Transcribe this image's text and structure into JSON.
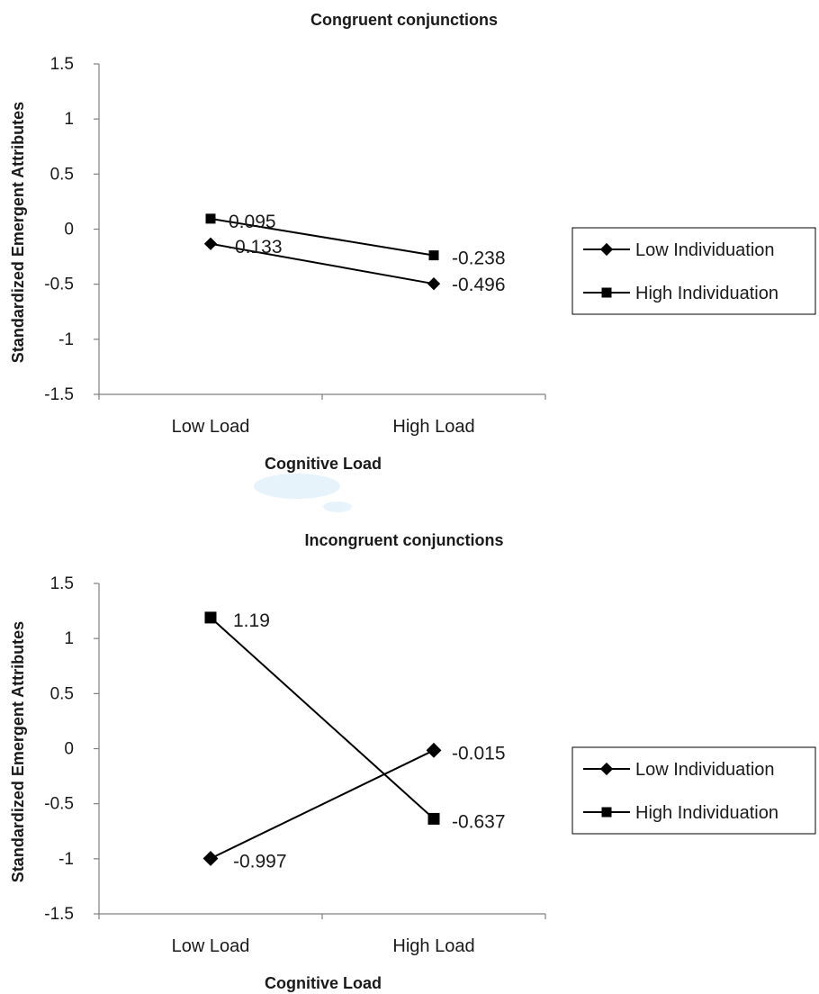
{
  "chart_data": [
    {
      "type": "line",
      "title": "Congruent conjunctions",
      "xlabel": "Cognitive Load",
      "ylabel": "Standardized Emergent Attributes",
      "categories": [
        "Low Load",
        "High Load"
      ],
      "ylim": [
        -1.5,
        1.5
      ],
      "yticks": [
        "1.5",
        "1",
        "0.5",
        "0",
        "-0.5",
        "-1",
        "-1.5"
      ],
      "grid": false,
      "legend_position": "right",
      "series": [
        {
          "name": "Low Individuation",
          "marker": "diamond",
          "values": [
            -0.133,
            -0.496
          ],
          "labels": [
            "-0.133",
            "-0.496"
          ]
        },
        {
          "name": "High Individuation",
          "marker": "square",
          "values": [
            0.095,
            -0.238
          ],
          "labels": [
            "0.095",
            "-0.238"
          ]
        }
      ]
    },
    {
      "type": "line",
      "title": "Incongruent conjunctions",
      "xlabel": "Cognitive Load",
      "ylabel": "Standardized Emergent Attributes",
      "categories": [
        "Low Load",
        "High Load"
      ],
      "ylim": [
        -1.5,
        1.5
      ],
      "yticks": [
        "1.5",
        "1",
        "0.5",
        "0",
        "-0.5",
        "-1",
        "-1.5"
      ],
      "grid": false,
      "legend_position": "right",
      "series": [
        {
          "name": "Low Individuation",
          "marker": "diamond",
          "values": [
            -0.997,
            -0.015
          ],
          "labels": [
            "-0.997",
            "-0.015"
          ]
        },
        {
          "name": "High Individuation",
          "marker": "square",
          "values": [
            1.19,
            -0.637
          ],
          "labels": [
            "1.19",
            "-0.637"
          ]
        }
      ]
    }
  ]
}
